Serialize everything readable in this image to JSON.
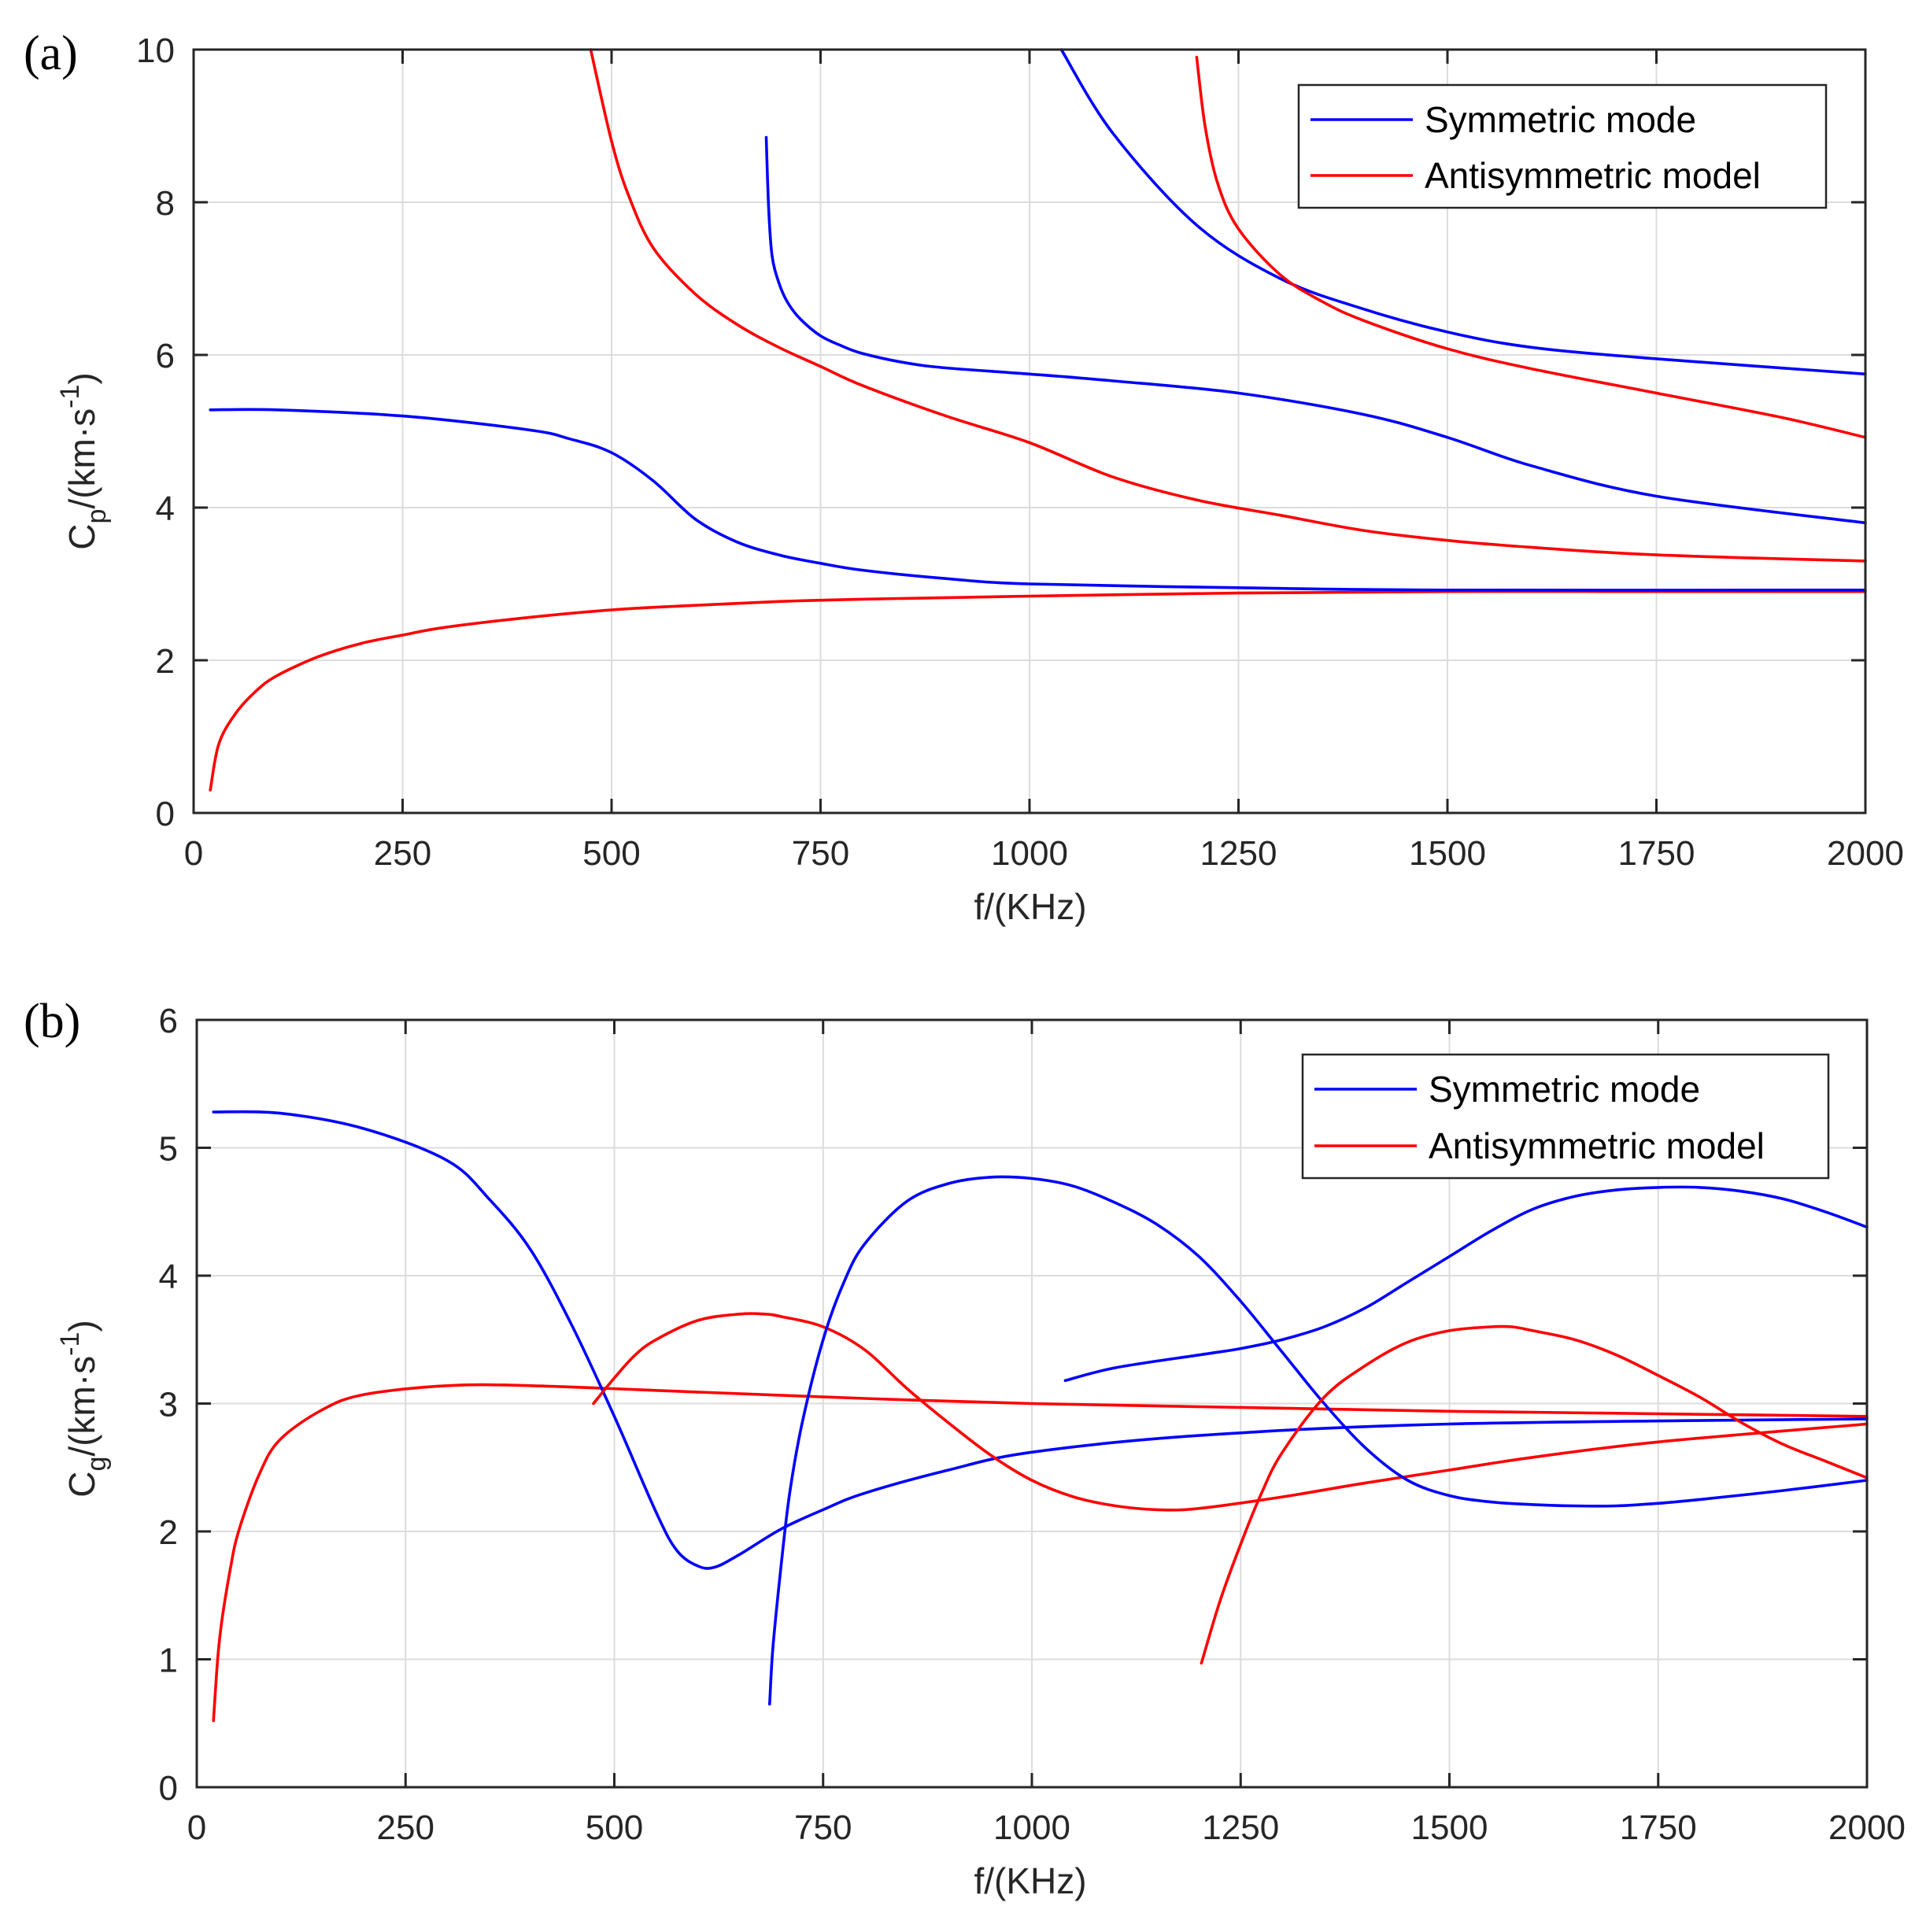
{
  "colors": {
    "symmetric": "#0000ff",
    "antisymmetric": "#ff0000"
  },
  "chart_data": [
    {
      "type": "line",
      "panel": "(a)",
      "title": "",
      "xlabel": "f/(KHz)",
      "ylabel": {
        "base": "C",
        "sub": "p",
        "rest": "/(km·s",
        "sup": "-1",
        "close": ")"
      },
      "xlim": [
        0,
        2000
      ],
      "ylim": [
        0,
        10
      ],
      "xticks": [
        0,
        250,
        500,
        750,
        1000,
        1250,
        1500,
        1750,
        2000
      ],
      "yticks": [
        0,
        2,
        4,
        6,
        8,
        10
      ],
      "grid": true,
      "legend_position": "top-right",
      "legend": [
        {
          "label": "Symmetric mode",
          "color_key": "symmetric"
        },
        {
          "label": "Antisymmetric model",
          "color_key": "antisymmetric"
        }
      ],
      "series": [
        {
          "name": "Antisymmetric model",
          "color_key": "antisymmetric",
          "x": [
            20,
            30,
            50,
            75,
            100,
            150,
            200,
            250,
            300,
            400,
            500,
            600,
            700,
            800,
            1000,
            1250,
            1500,
            1750,
            2000
          ],
          "y": [
            0.3,
            0.9,
            1.3,
            1.6,
            1.8,
            2.05,
            2.22,
            2.33,
            2.43,
            2.56,
            2.66,
            2.72,
            2.77,
            2.8,
            2.84,
            2.88,
            2.9,
            2.9,
            2.9
          ]
        },
        {
          "name": "Symmetric mode",
          "color_key": "symmetric",
          "x": [
            20,
            100,
            250,
            400,
            450,
            500,
            550,
            600,
            650,
            700,
            750,
            800,
            900,
            1000,
            1250,
            1500,
            2000
          ],
          "y": [
            5.28,
            5.28,
            5.2,
            5.02,
            4.9,
            4.72,
            4.35,
            3.85,
            3.55,
            3.38,
            3.27,
            3.18,
            3.07,
            3.0,
            2.95,
            2.92,
            2.92
          ]
        },
        {
          "name": "Antisymmetric model",
          "color_key": "antisymmetric",
          "x": [
            475,
            500,
            520,
            550,
            600,
            650,
            700,
            750,
            800,
            900,
            1000,
            1100,
            1200,
            1300,
            1400,
            1500,
            1600,
            1750,
            2000
          ],
          "y": [
            10.0,
            8.8,
            8.1,
            7.4,
            6.8,
            6.4,
            6.1,
            5.85,
            5.6,
            5.2,
            4.85,
            4.4,
            4.1,
            3.9,
            3.7,
            3.57,
            3.48,
            3.38,
            3.3
          ]
        },
        {
          "name": "Symmetric mode",
          "color_key": "symmetric",
          "x": [
            685,
            688,
            692,
            700,
            710,
            725,
            750,
            775,
            800,
            850,
            900,
            1000,
            1100,
            1250,
            1400,
            1500,
            1600,
            1750,
            2000
          ],
          "y": [
            8.85,
            7.9,
            7.3,
            6.95,
            6.7,
            6.48,
            6.25,
            6.12,
            6.02,
            5.9,
            5.83,
            5.75,
            5.66,
            5.5,
            5.22,
            4.92,
            4.55,
            4.15,
            3.8
          ]
        },
        {
          "name": "Symmetric mode",
          "color_key": "symmetric",
          "x": [
            1038,
            1100,
            1200,
            1300,
            1400,
            1500,
            1600,
            1750,
            2000
          ],
          "y": [
            10.0,
            8.9,
            7.7,
            7.0,
            6.6,
            6.3,
            6.1,
            5.95,
            5.75
          ]
        },
        {
          "name": "Antisymmetric model",
          "color_key": "antisymmetric",
          "x": [
            1200,
            1210,
            1225,
            1250,
            1300,
            1350,
            1400,
            1500,
            1600,
            1750,
            1900,
            2000
          ],
          "y": [
            9.9,
            9.0,
            8.25,
            7.65,
            7.05,
            6.7,
            6.45,
            6.08,
            5.82,
            5.5,
            5.18,
            4.92
          ]
        }
      ]
    },
    {
      "type": "line",
      "panel": "(b)",
      "title": "",
      "xlabel": "f/(KHz)",
      "ylabel": {
        "base": "C",
        "sub": "g",
        "rest": "/(km·s",
        "sup": "-1",
        "close": ")"
      },
      "xlim": [
        0,
        2000
      ],
      "ylim": [
        0,
        6
      ],
      "xticks": [
        0,
        250,
        500,
        750,
        1000,
        1250,
        1500,
        1750,
        2000
      ],
      "yticks": [
        0,
        1,
        2,
        3,
        4,
        5,
        6
      ],
      "grid": true,
      "legend_position": "top-right",
      "legend": [
        {
          "label": "Symmetric mode",
          "color_key": "symmetric"
        },
        {
          "label": "Antisymmetric model",
          "color_key": "antisymmetric"
        }
      ],
      "series": [
        {
          "name": "Antisymmetric model",
          "color_key": "antisymmetric",
          "x": [
            20,
            25,
            30,
            40,
            50,
            75,
            100,
            150,
            200,
            300,
            400,
            600,
            800,
            1000,
            1250,
            1500,
            1750,
            2000
          ],
          "y": [
            0.52,
            1.0,
            1.3,
            1.7,
            2.0,
            2.45,
            2.72,
            2.95,
            3.07,
            3.14,
            3.14,
            3.09,
            3.04,
            3.0,
            2.97,
            2.94,
            2.92,
            2.9
          ]
        },
        {
          "name": "Symmetric mode",
          "color_key": "symmetric",
          "x": [
            20,
            100,
            200,
            300,
            350,
            400,
            450,
            500,
            550,
            575,
            600,
            620,
            650,
            700,
            750,
            800,
            900,
            1000,
            1200,
            1500,
            2000
          ],
          "y": [
            5.28,
            5.27,
            5.15,
            4.9,
            4.6,
            4.2,
            3.6,
            2.9,
            2.15,
            1.85,
            1.73,
            1.72,
            1.82,
            2.02,
            2.17,
            2.3,
            2.48,
            2.62,
            2.75,
            2.84,
            2.88
          ]
        },
        {
          "name": "Antisymmetric model",
          "color_key": "antisymmetric",
          "x": [
            475,
            500,
            525,
            550,
            600,
            650,
            680,
            700,
            750,
            800,
            850,
            900,
            950,
            1000,
            1050,
            1100,
            1150,
            1200,
            1300,
            1400,
            1500,
            1600,
            1750,
            2000
          ],
          "y": [
            3.0,
            3.2,
            3.38,
            3.5,
            3.65,
            3.7,
            3.7,
            3.68,
            3.6,
            3.42,
            3.12,
            2.85,
            2.6,
            2.4,
            2.27,
            2.2,
            2.17,
            2.18,
            2.27,
            2.38,
            2.48,
            2.58,
            2.7,
            2.84
          ]
        },
        {
          "name": "Symmetric mode",
          "color_key": "symmetric",
          "x": [
            686,
            690,
            700,
            710,
            725,
            750,
            775,
            800,
            850,
            900,
            950,
            1000,
            1050,
            1100,
            1150,
            1200,
            1250,
            1300,
            1350,
            1400,
            1450,
            1500,
            1550,
            1600,
            1650,
            1700,
            1750,
            1800,
            1900,
            2000
          ],
          "y": [
            0.65,
            1.1,
            1.75,
            2.3,
            2.85,
            3.5,
            3.95,
            4.25,
            4.58,
            4.72,
            4.77,
            4.76,
            4.7,
            4.57,
            4.4,
            4.15,
            3.8,
            3.4,
            3.0,
            2.65,
            2.4,
            2.28,
            2.23,
            2.21,
            2.2,
            2.2,
            2.22,
            2.25,
            2.32,
            2.4
          ]
        },
        {
          "name": "Symmetric mode",
          "color_key": "symmetric",
          "x": [
            1040,
            1100,
            1200,
            1250,
            1300,
            1350,
            1400,
            1450,
            1500,
            1550,
            1600,
            1650,
            1700,
            1750,
            1800,
            1850,
            1900,
            1950,
            2000
          ],
          "y": [
            3.18,
            3.28,
            3.38,
            3.43,
            3.5,
            3.6,
            3.75,
            3.95,
            4.15,
            4.35,
            4.52,
            4.62,
            4.67,
            4.69,
            4.69,
            4.66,
            4.6,
            4.5,
            4.38
          ]
        },
        {
          "name": "Antisymmetric model",
          "color_key": "antisymmetric",
          "x": [
            1203,
            1225,
            1250,
            1275,
            1300,
            1350,
            1400,
            1450,
            1500,
            1550,
            1575,
            1600,
            1650,
            1700,
            1750,
            1800,
            1850,
            1900,
            1950,
            2000
          ],
          "y": [
            0.97,
            1.45,
            1.9,
            2.3,
            2.62,
            3.05,
            3.3,
            3.48,
            3.57,
            3.6,
            3.6,
            3.57,
            3.5,
            3.38,
            3.22,
            3.05,
            2.85,
            2.68,
            2.55,
            2.42
          ]
        }
      ]
    }
  ]
}
